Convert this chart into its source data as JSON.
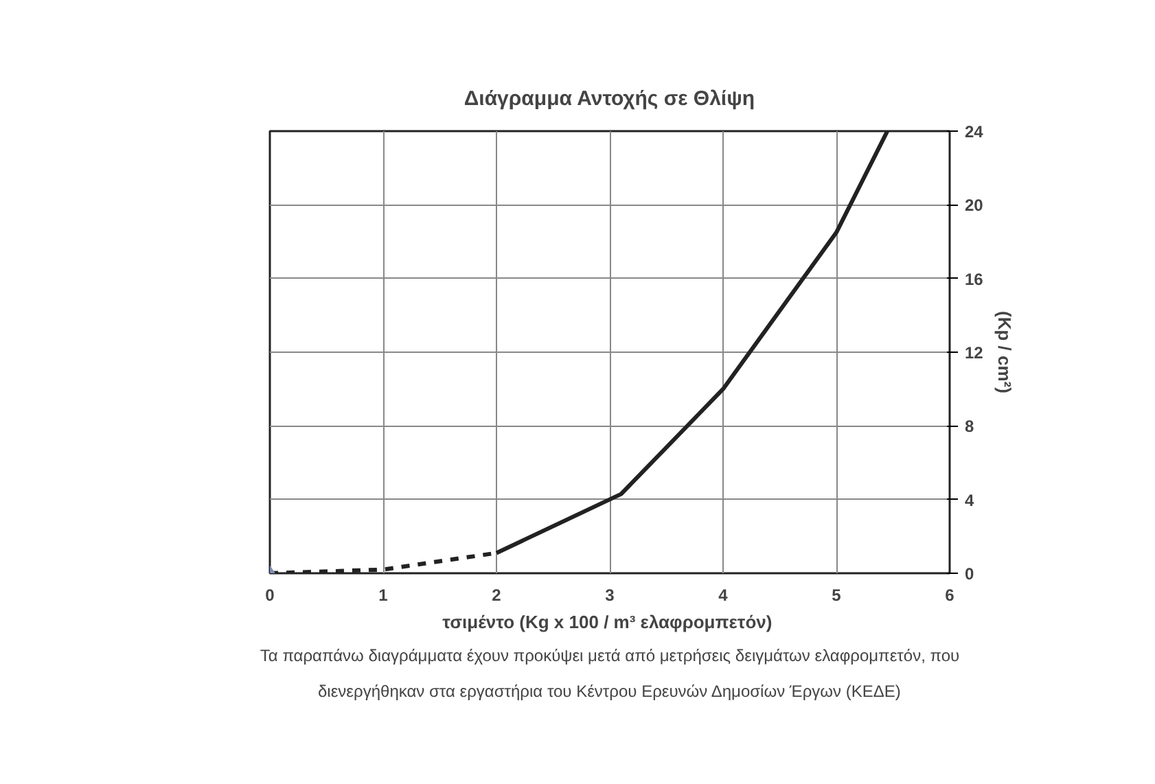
{
  "chart_data": {
    "type": "line",
    "title": "Διάγραμμα Αντοχής σε Θλίψη",
    "xlabel": "τσιμέντο  (Kg x 100 / m³ ελαφρομπετόν)",
    "ylabel": "(Kp / cm²)",
    "xlim": [
      0,
      6
    ],
    "xticks": [
      0,
      1,
      2,
      3,
      4,
      5,
      6
    ],
    "ylim": [
      0,
      24
    ],
    "yticks": [
      0,
      4,
      8,
      12,
      16,
      20,
      24
    ],
    "grid": true,
    "series": [
      {
        "color": "#222222",
        "line_style": "dashed",
        "x": [
          0,
          1,
          2
        ],
        "values": [
          0,
          0.2,
          1.1
        ]
      },
      {
        "color": "#222222",
        "line_style": "solid",
        "x": [
          2,
          3.1,
          4,
          5,
          5.45
        ],
        "values": [
          1.1,
          4.3,
          10,
          18.5,
          24
        ]
      },
      {
        "type": "scatter",
        "marker": "diamond",
        "color": "#7f8fb5",
        "x": [
          0
        ],
        "values": [
          0
        ]
      }
    ],
    "annotations": [
      "Τα παραπάνω διαγράμματα έχουν προκύψει μετά από μετρήσεις δειγμάτων ελαφρομπετόν, που",
      "διενεργήθηκαν στα εργαστήρια του Κέντρου Ερευνών Δημοσίων Έργων (ΚΕΔΕ)"
    ]
  }
}
